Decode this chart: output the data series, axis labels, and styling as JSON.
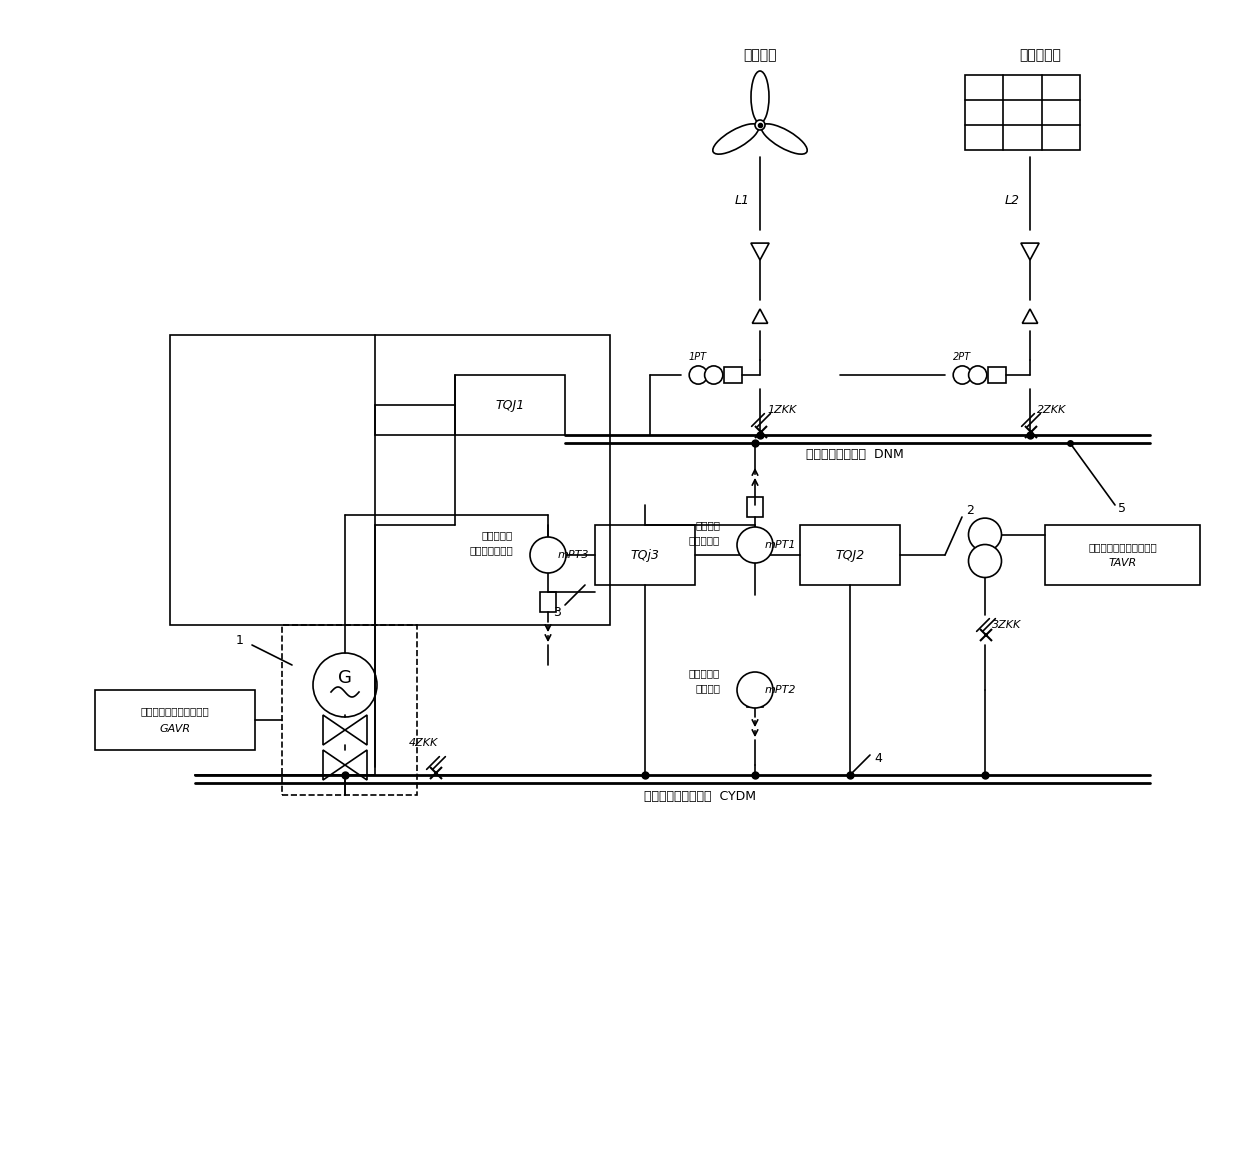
{
  "background": "#ffffff",
  "line_color": "#000000",
  "line_width": 1.2,
  "labels": {
    "wind": "风能发电",
    "solar": "太阳能发电",
    "L1": "L1",
    "L2": "L2",
    "1ZKK": "1ZKK",
    "2ZKK": "2ZKK",
    "3ZKK": "3ZKK",
    "4ZKK": "4ZKK",
    "TQJ1": "TQJ1",
    "TQJ2": "TQJ2",
    "TQJ3": "TQj3",
    "DNM": "多能集电电压母线  DNM",
    "CYDM": "火电厂厂用电压母线  CYDM",
    "mPT1": "mPT1",
    "mPT2": "mPT2",
    "mPT3": "mPT3",
    "1PT": "1PT",
    "2PT": "2PT",
    "GAVR_label1": "发电机自动层磁调节装置",
    "GAVR_label2": "GAVR",
    "TAVR_label1": "变压器自动有载调压装置",
    "TAVR_label2": "TAVR",
    "bus_monitor1": "母线电压",
    "bus_monitor2": "集控室监控",
    "gen_monitor1": "集控室监控",
    "gen_monitor2": "发电机机端电压",
    "num1": "1",
    "num2": "2",
    "num3": "3",
    "num4": "4",
    "num5": "5"
  }
}
